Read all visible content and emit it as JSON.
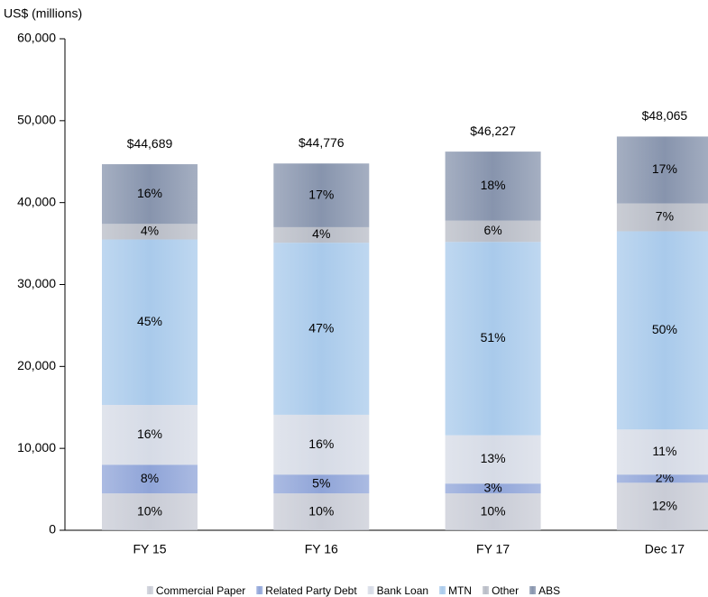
{
  "chart_data": {
    "type": "stacked_bar",
    "y_label": "US$ (millions)",
    "categories": [
      "FY 15",
      "FY 16",
      "FY 17",
      "Dec 17"
    ],
    "series": [
      {
        "name": "Commercial Paper",
        "color": "#c9ccd6",
        "values": [
          4500,
          4500,
          4500,
          5800
        ],
        "value_labels": [
          "10%",
          "10%",
          "10%",
          "12%"
        ]
      },
      {
        "name": "Related Party Debt",
        "color": "#8fa4d8",
        "values": [
          3500,
          2300,
          1200,
          1000
        ],
        "value_labels": [
          "8%",
          "5%",
          "3%",
          "2%"
        ]
      },
      {
        "name": "Bank Loan",
        "color": "#d6dbe6",
        "values": [
          7300,
          7300,
          5900,
          5500
        ],
        "value_labels": [
          "16%",
          "16%",
          "13%",
          "11%"
        ]
      },
      {
        "name": "MTN",
        "color": "#a9caeb",
        "values": [
          20200,
          21000,
          23600,
          24200
        ],
        "value_labels": [
          "45%",
          "47%",
          "51%",
          "50%"
        ]
      },
      {
        "name": "Other",
        "color": "#b8bcc6",
        "values": [
          1900,
          1900,
          2600,
          3400
        ],
        "value_labels": [
          "4%",
          "4%",
          "6%",
          "7%"
        ]
      },
      {
        "name": "ABS",
        "color": "#8794ad",
        "values": [
          7289,
          7776,
          8427,
          8165
        ],
        "value_labels": [
          "16%",
          "17%",
          "18%",
          "17%"
        ]
      }
    ],
    "totals": {
      "values": [
        44689,
        44776,
        46227,
        48065
      ],
      "value_labels": [
        "$44,689",
        "$44,776",
        "$46,227",
        "$48,065"
      ]
    },
    "ylim": [
      0,
      60000
    ],
    "yticks": [
      {
        "value": 0,
        "label": "0"
      },
      {
        "value": 10000,
        "label": "10,000"
      },
      {
        "value": 20000,
        "label": "20,000"
      },
      {
        "value": 30000,
        "label": "30,000"
      },
      {
        "value": 40000,
        "label": "40,000"
      },
      {
        "value": 50000,
        "label": "50,000"
      },
      {
        "value": 60000,
        "label": "60,000"
      }
    ],
    "grid": false
  }
}
